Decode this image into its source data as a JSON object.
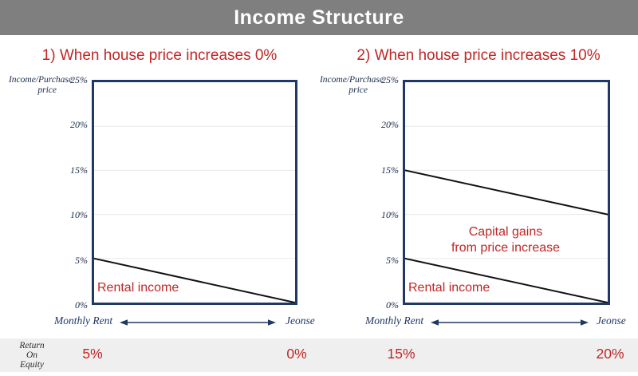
{
  "slide_title": "Income Structure",
  "colors": {
    "title_bar": "#7f7f7f",
    "accent_red": "#c02626",
    "navy": "#1f3864",
    "navy_text": "#1b2a4a",
    "gridline": "#e9e9e9",
    "line": "#111111",
    "band_bg": "#efefef"
  },
  "panels": [
    {
      "subtitle": "1) When house price increases 0%",
      "y_axis_title": [
        "Income/Purchase",
        "price"
      ],
      "yticks": [
        "25%",
        "20%",
        "15%",
        "10%",
        "5%",
        "0%"
      ],
      "y_max": 25,
      "gridlines": [
        20,
        15,
        10,
        5
      ],
      "lines": [
        {
          "name": "Rental income",
          "from": 5,
          "to": 0
        }
      ],
      "area_labels": [
        {
          "text": "Rental income"
        }
      ],
      "x_min_label": "Monthly Rent",
      "x_max_label": "Jeonse"
    },
    {
      "subtitle": "2) When house price increases 10%",
      "y_axis_title": [
        "Income/Purchase",
        "price"
      ],
      "yticks": [
        "25%",
        "20%",
        "15%",
        "10%",
        "5%",
        "0%"
      ],
      "y_max": 25,
      "gridlines": [
        20,
        15,
        10,
        5
      ],
      "lines": [
        {
          "name": "Rental income",
          "from": 5,
          "to": 0
        },
        {
          "name": "Rental income + capital gains",
          "from": 15,
          "to": 10
        }
      ],
      "area_labels": [
        {
          "lines": [
            "Capital gains",
            "from price increase"
          ]
        },
        {
          "text": "Rental income"
        }
      ],
      "x_min_label": "Monthly Rent",
      "x_max_label": "Jeonse"
    }
  ],
  "roe": {
    "header_lines": [
      "Return",
      "On",
      "Equity"
    ],
    "values": [
      "5%",
      "0%",
      "15%",
      "20%"
    ]
  },
  "chart_data": [
    {
      "type": "line",
      "title": "1) When house price increases 0%",
      "x_categories": [
        "Monthly Rent",
        "Jeonse"
      ],
      "series": [
        {
          "name": "Rental income",
          "values": [
            5,
            0
          ]
        }
      ],
      "ylabel": "Income/Purchase price",
      "ylim": [
        0,
        25
      ],
      "yticks": [
        0,
        5,
        10,
        15,
        20,
        25
      ],
      "units": "%",
      "grid": true,
      "legend_position": "none",
      "annotations": [
        "Rental income"
      ],
      "return_on_equity": {
        "Monthly Rent": "5%",
        "Jeonse": "0%"
      }
    },
    {
      "type": "line",
      "title": "2) When house price increases 10%",
      "x_categories": [
        "Monthly Rent",
        "Jeonse"
      ],
      "series": [
        {
          "name": "Rental income",
          "values": [
            5,
            0
          ]
        },
        {
          "name": "Rental income + capital gains from price increase",
          "values": [
            15,
            10
          ]
        }
      ],
      "ylabel": "Income/Purchase price",
      "ylim": [
        0,
        25
      ],
      "yticks": [
        0,
        5,
        10,
        15,
        20,
        25
      ],
      "units": "%",
      "grid": true,
      "legend_position": "none",
      "annotations": [
        "Capital gains from price increase",
        "Rental income"
      ],
      "return_on_equity": {
        "Monthly Rent": "15%",
        "Jeonse": "20%"
      }
    }
  ]
}
